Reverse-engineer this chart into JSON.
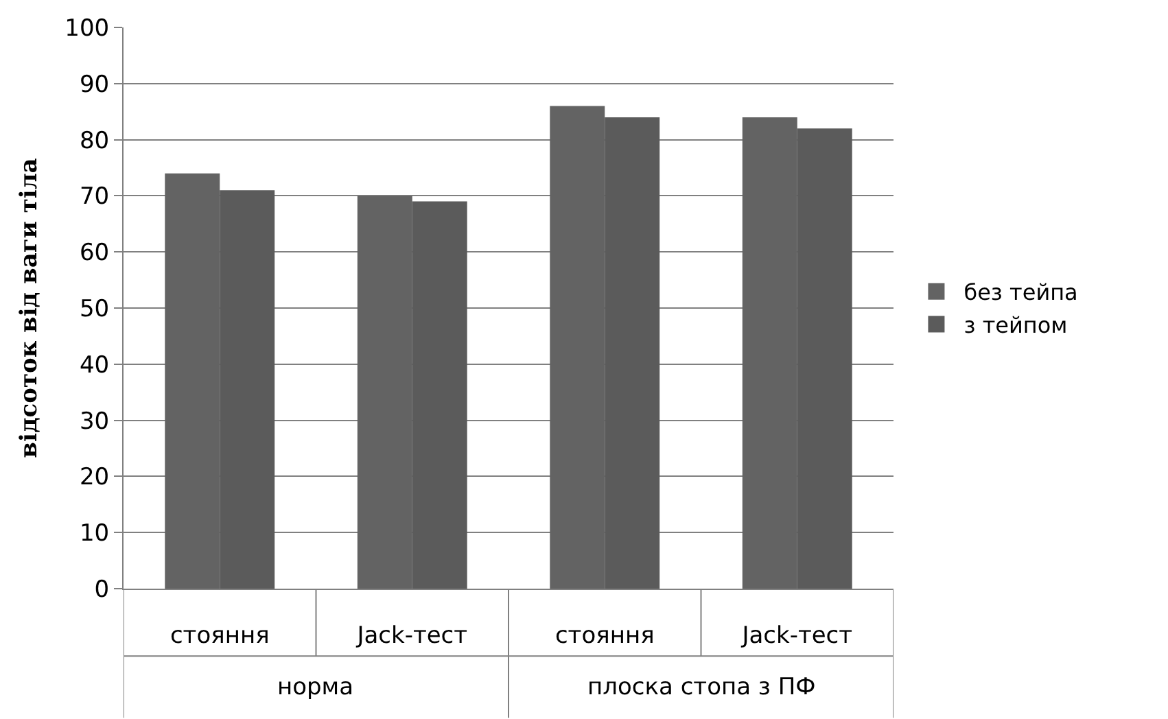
{
  "chart_data": {
    "type": "bar",
    "ylabel": "відсоток від ваги тіла",
    "categories": [
      "стояння",
      "Jack-тест",
      "стояння",
      "Jack-тест"
    ],
    "series": [
      {
        "name": "без тейпа",
        "color": "#636363",
        "values": [
          74,
          70,
          86,
          84
        ]
      },
      {
        "name": "з тейпом",
        "color": "#5b5b5b",
        "values": [
          71,
          69,
          84,
          82
        ]
      }
    ],
    "annotations": [
      "норма",
      "плоска стопа з ПФ"
    ],
    "ylim": [
      0,
      100
    ],
    "yticks": [
      0,
      10,
      20,
      30,
      40,
      50,
      60,
      70,
      80,
      90,
      100
    ],
    "grid": "y",
    "legend": "right"
  }
}
